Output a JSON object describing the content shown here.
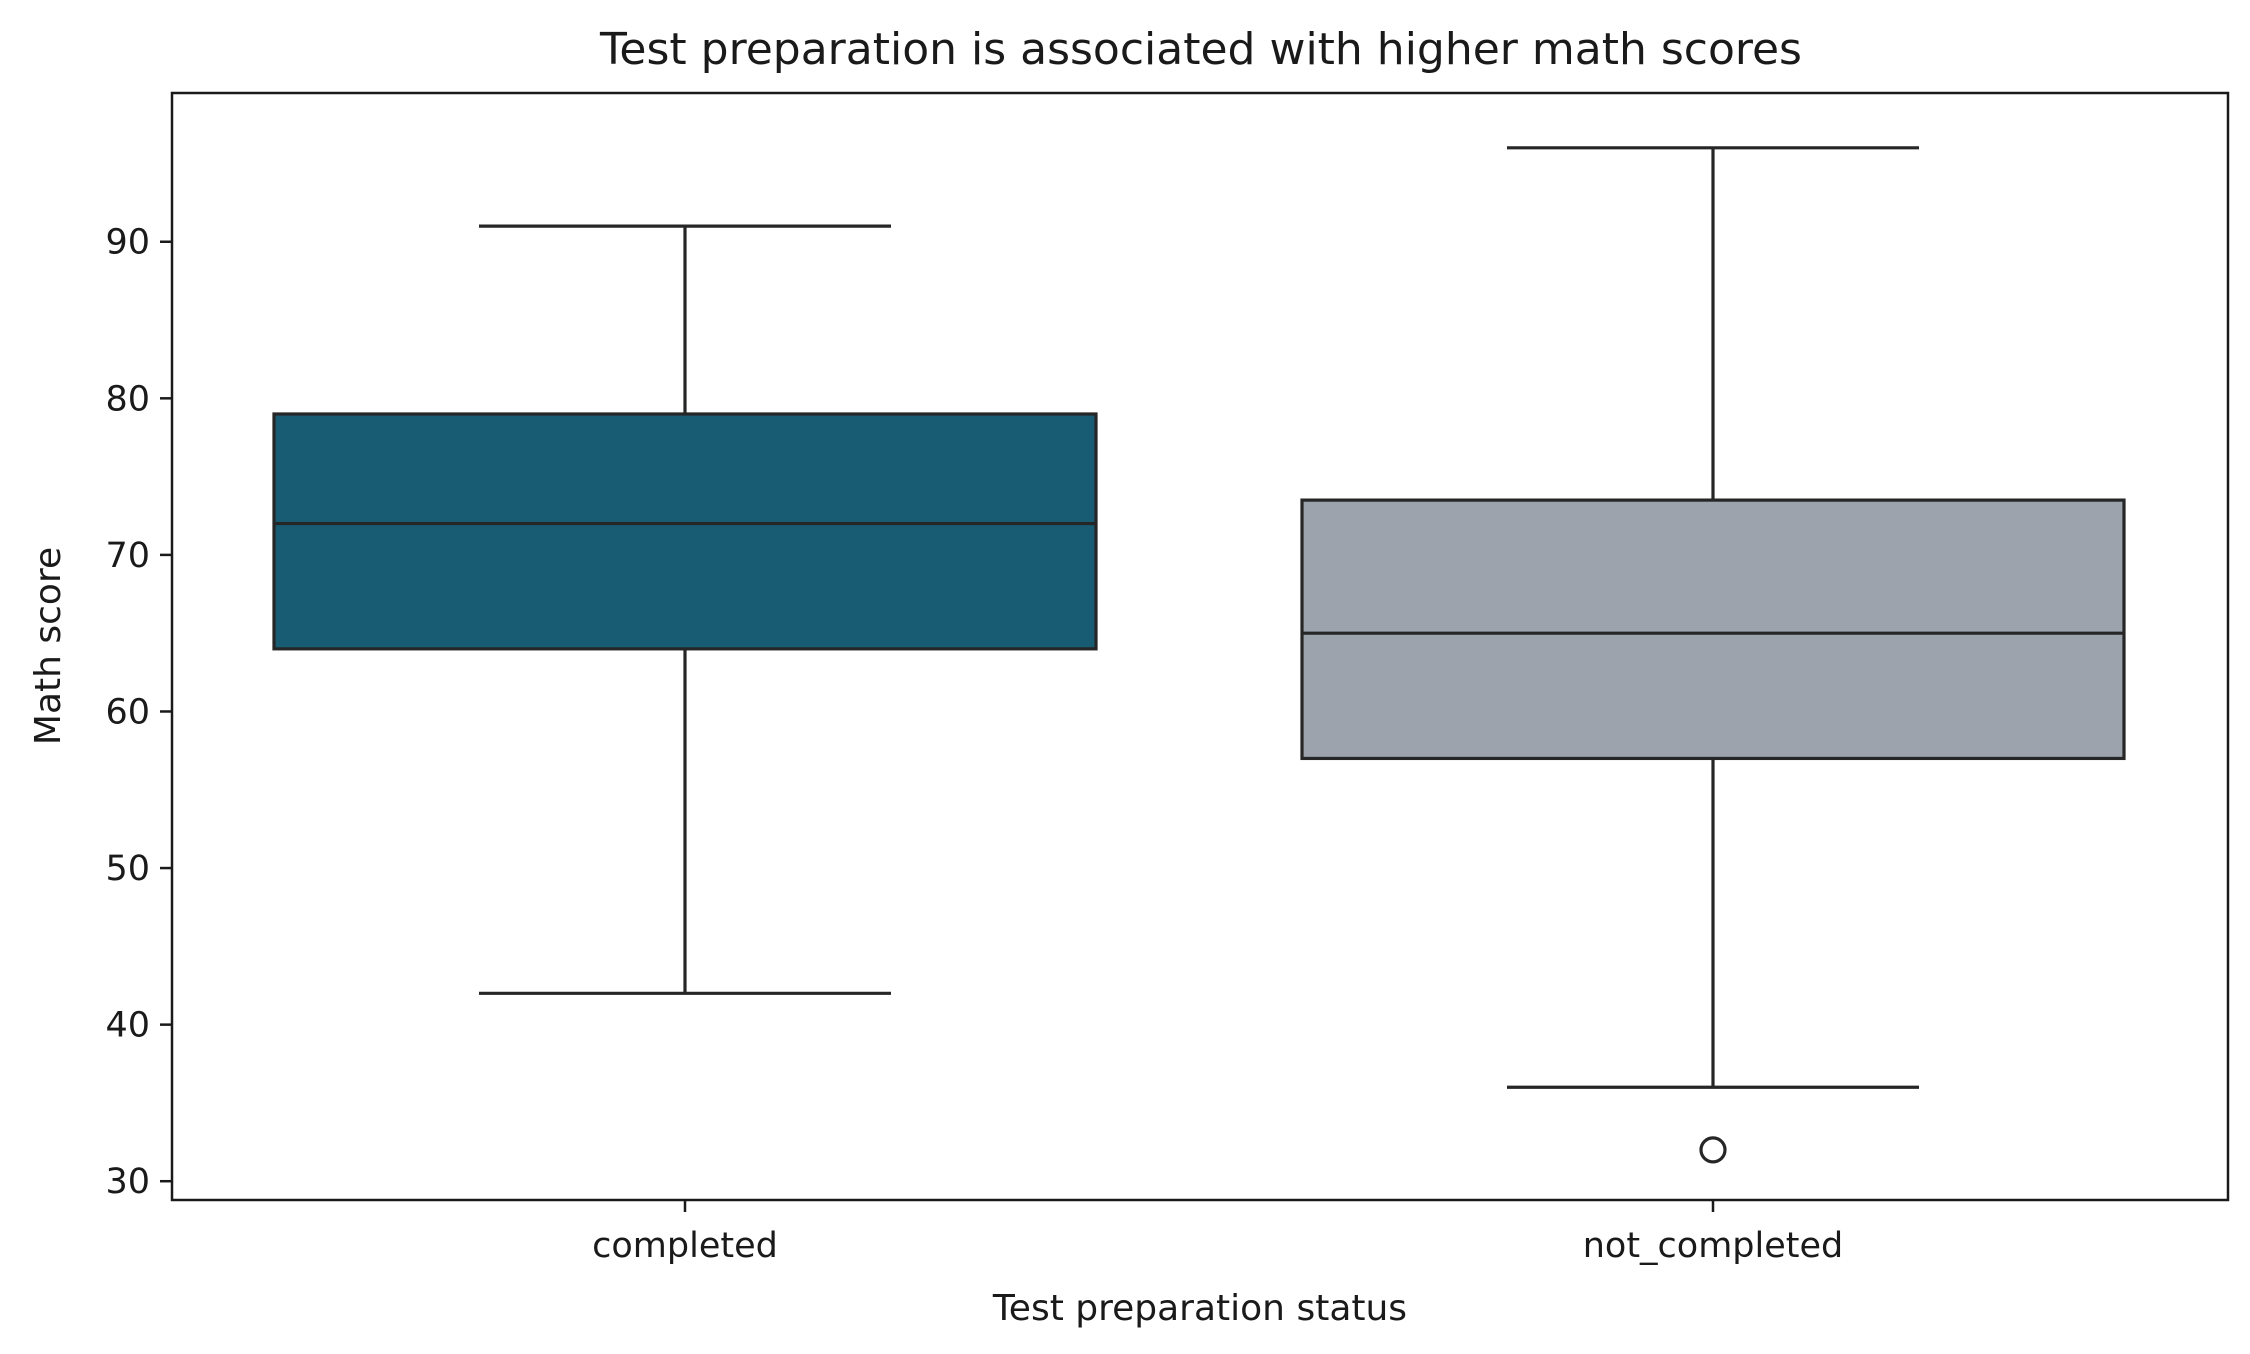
{
  "chart_data": {
    "type": "box",
    "title": "Test preparation is associated with higher math scores",
    "xlabel": "Test preparation status",
    "ylabel": "Math score",
    "ylim": [
      28.8,
      99.5
    ],
    "yticks": [
      30,
      40,
      50,
      60,
      70,
      80,
      90
    ],
    "grid": false,
    "categories": [
      "completed",
      "not_completed"
    ],
    "boxes": [
      {
        "category": "completed",
        "whisker_low": 42,
        "q1": 64,
        "median": 72,
        "q3": 79,
        "whisker_high": 91,
        "outliers": [],
        "color": "#175c72"
      },
      {
        "category": "not_completed",
        "whisker_low": 36,
        "q1": 57,
        "median": 65,
        "q3": 73.5,
        "whisker_high": 96,
        "outliers": [
          32
        ],
        "color": "#9ca3ac"
      }
    ]
  }
}
